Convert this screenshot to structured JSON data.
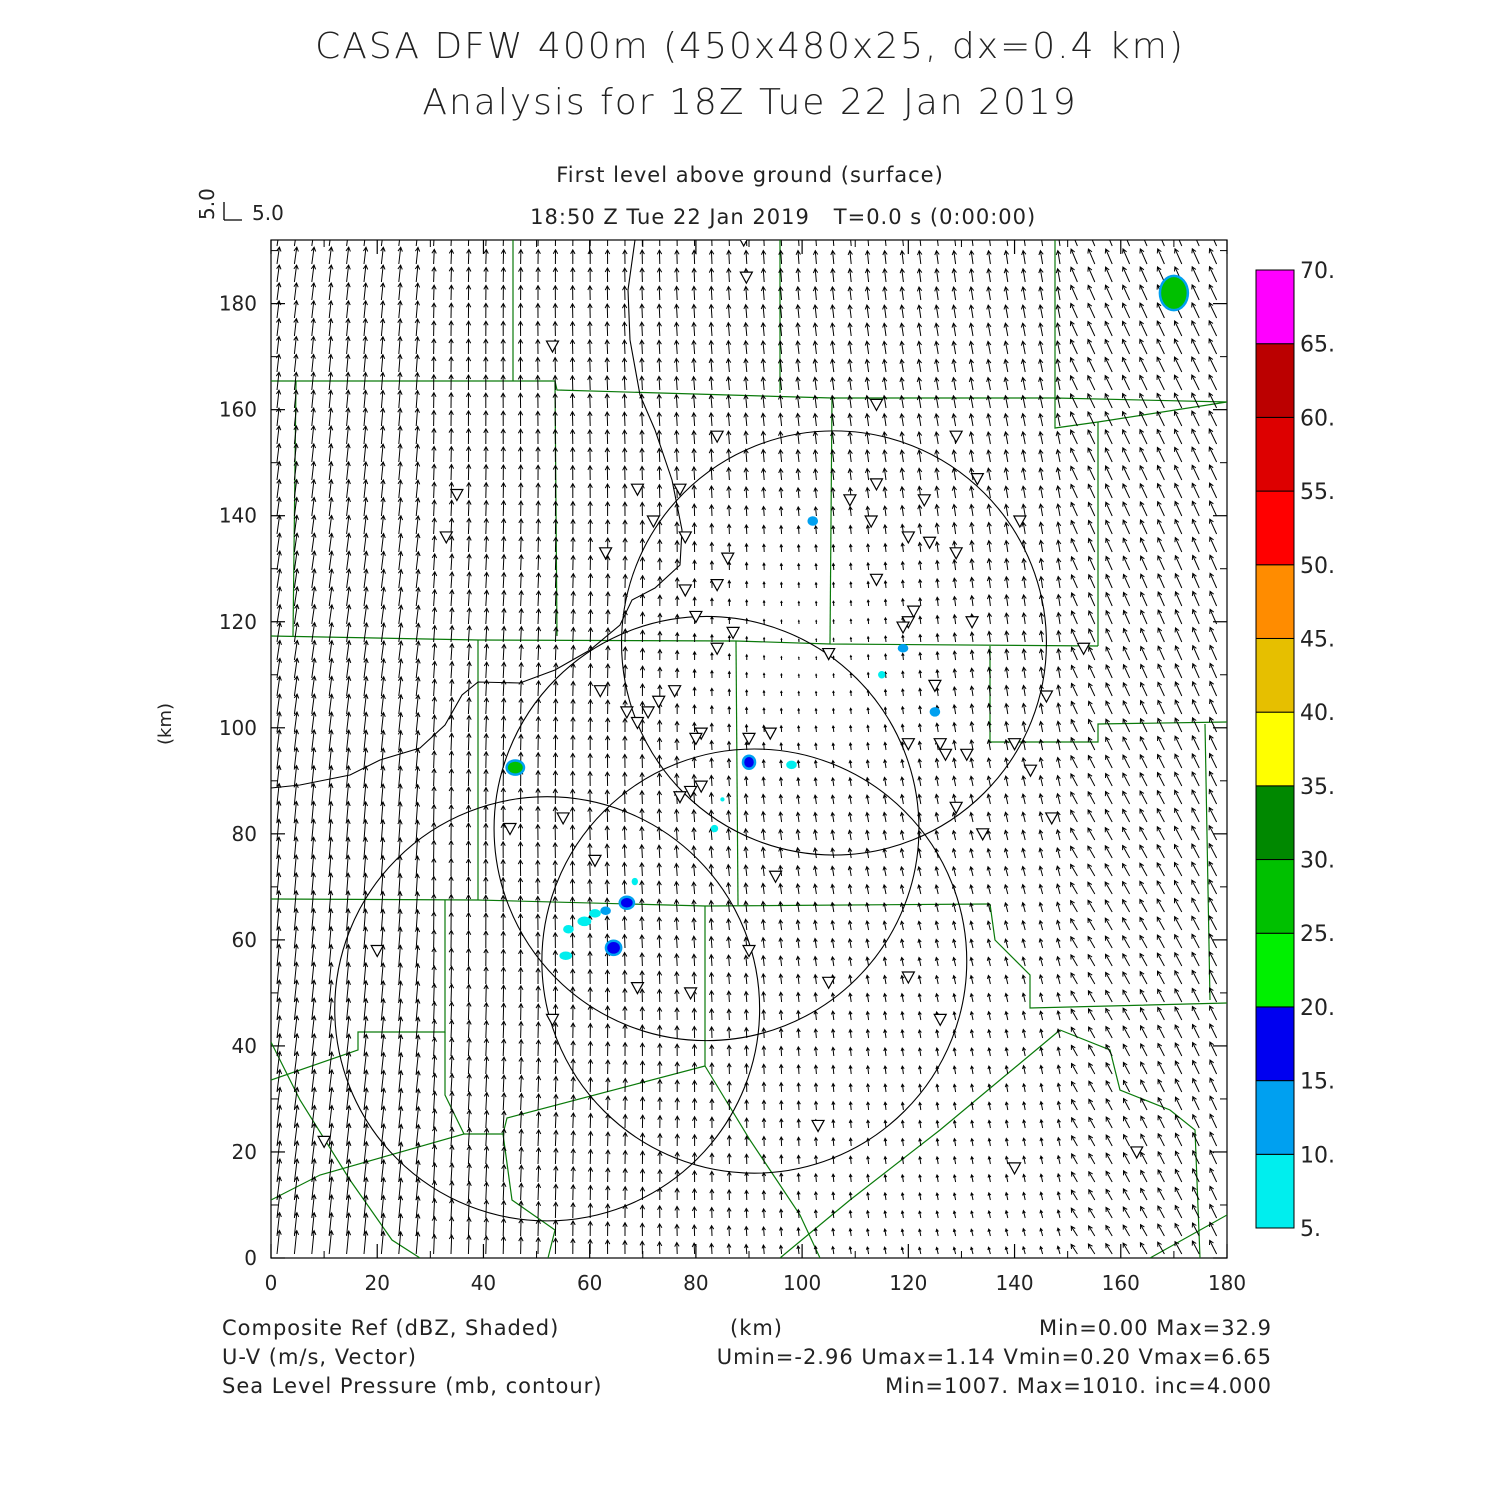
{
  "chart_data": {
    "type": "vector-field",
    "title": "CASA DFW 400m (450x480x25, dx=0.4 km)",
    "subtitle": "Analysis for 18Z Tue 22 Jan 2019",
    "level_label": "First level above ground (surface)",
    "time_label": "18:50 Z Tue 22 Jan 2019",
    "time_offset_label": "T=0.0 s (0:00:00)",
    "ref_vector": {
      "u_label": "5.0",
      "v_label": "5.0"
    },
    "xlabel": "(km)",
    "ylabel": "(km)",
    "xlim": [
      0,
      180
    ],
    "ylim": [
      0,
      192
    ],
    "xticks": [
      0,
      20,
      40,
      60,
      80,
      100,
      120,
      140,
      160,
      180
    ],
    "yticks": [
      0,
      20,
      40,
      60,
      80,
      100,
      120,
      140,
      160,
      180
    ],
    "colorbar": {
      "levels": [
        "5.",
        "10.",
        "15.",
        "20.",
        "25.",
        "30.",
        "35.",
        "40.",
        "45.",
        "50.",
        "55.",
        "60.",
        "65.",
        "70."
      ],
      "colors": [
        "#00eeee",
        "#00a0f0",
        "#0000f0",
        "#00f000",
        "#00c000",
        "#008800",
        "#ffff00",
        "#e6bf00",
        "#ff8c00",
        "#ff0000",
        "#dd0000",
        "#bb0000",
        "#ff00ff"
      ]
    },
    "radar_circles_km": [
      {
        "cx": 52,
        "cy": 47,
        "r": 40
      },
      {
        "cx": 82,
        "cy": 81,
        "r": 40
      },
      {
        "cx": 91,
        "cy": 56,
        "r": 40
      },
      {
        "cx": 106,
        "cy": 116,
        "r": 40
      }
    ],
    "stations_km": [
      [
        89,
        192
      ],
      [
        89.5,
        185
      ],
      [
        53,
        172
      ],
      [
        114,
        161
      ],
      [
        84,
        155
      ],
      [
        129,
        155
      ],
      [
        133,
        147
      ],
      [
        35,
        144
      ],
      [
        69,
        145
      ],
      [
        77,
        145
      ],
      [
        114,
        146
      ],
      [
        109,
        143
      ],
      [
        123,
        143
      ],
      [
        33,
        136
      ],
      [
        72,
        139
      ],
      [
        113,
        139
      ],
      [
        141,
        139
      ],
      [
        78,
        136
      ],
      [
        120,
        136
      ],
      [
        124,
        135
      ],
      [
        63,
        133
      ],
      [
        86,
        132
      ],
      [
        129,
        133
      ],
      [
        114,
        128
      ],
      [
        84,
        127
      ],
      [
        78,
        126
      ],
      [
        121,
        122
      ],
      [
        120,
        120
      ],
      [
        80,
        121
      ],
      [
        132,
        120
      ],
      [
        119,
        119
      ],
      [
        87,
        118
      ],
      [
        84,
        115
      ],
      [
        105,
        114
      ],
      [
        153,
        115
      ],
      [
        62,
        107
      ],
      [
        125,
        108
      ],
      [
        76,
        107
      ],
      [
        73,
        105
      ],
      [
        71,
        103
      ],
      [
        67,
        103
      ],
      [
        69,
        101
      ],
      [
        146,
        106
      ],
      [
        81,
        99
      ],
      [
        90,
        98
      ],
      [
        94,
        99
      ],
      [
        80,
        98
      ],
      [
        120,
        97
      ],
      [
        140,
        97
      ],
      [
        126,
        97
      ],
      [
        127,
        95
      ],
      [
        131,
        95
      ],
      [
        143,
        92
      ],
      [
        81,
        89
      ],
      [
        79,
        88
      ],
      [
        77,
        87
      ],
      [
        129,
        85
      ],
      [
        55,
        83
      ],
      [
        147,
        83
      ],
      [
        45,
        81
      ],
      [
        134,
        80
      ],
      [
        61,
        75
      ],
      [
        95,
        72
      ],
      [
        20,
        58
      ],
      [
        90,
        58
      ],
      [
        105,
        52
      ],
      [
        120,
        53
      ],
      [
        69,
        51
      ],
      [
        79,
        50
      ],
      [
        53,
        45
      ],
      [
        126,
        45
      ],
      [
        103,
        25
      ],
      [
        10,
        22
      ],
      [
        163,
        20
      ],
      [
        140,
        17
      ]
    ],
    "echoes_km": [
      {
        "x": 170,
        "y": 182,
        "rx": 2.4,
        "ry": 3.0,
        "dbz": 25
      },
      {
        "x": 102,
        "y": 139,
        "rx": 1.0,
        "ry": 0.9,
        "dbz": 10
      },
      {
        "x": 119,
        "y": 115,
        "rx": 1.0,
        "ry": 0.8,
        "dbz": 10
      },
      {
        "x": 115,
        "y": 110,
        "rx": 0.7,
        "ry": 0.7,
        "dbz": 5
      },
      {
        "x": 125,
        "y": 103,
        "rx": 1.0,
        "ry": 0.9,
        "dbz": 10
      },
      {
        "x": 46,
        "y": 92.5,
        "rx": 1.4,
        "ry": 1.1,
        "dbz": 25
      },
      {
        "x": 90,
        "y": 93.5,
        "rx": 0.9,
        "ry": 1.0,
        "dbz": 15
      },
      {
        "x": 98,
        "y": 93,
        "rx": 1.0,
        "ry": 0.8,
        "dbz": 5
      },
      {
        "x": 83.5,
        "y": 81,
        "rx": 0.7,
        "ry": 0.7,
        "dbz": 5
      },
      {
        "x": 85,
        "y": 86.5,
        "rx": 0.4,
        "ry": 0.4,
        "dbz": 5
      },
      {
        "x": 67,
        "y": 67,
        "rx": 1.1,
        "ry": 0.9,
        "dbz": 15
      },
      {
        "x": 68.5,
        "y": 71,
        "rx": 0.6,
        "ry": 0.7,
        "dbz": 5
      },
      {
        "x": 61,
        "y": 65,
        "rx": 1.1,
        "ry": 0.8,
        "dbz": 5
      },
      {
        "x": 63,
        "y": 65.5,
        "rx": 1.0,
        "ry": 0.8,
        "dbz": 10
      },
      {
        "x": 59,
        "y": 63.5,
        "rx": 1.3,
        "ry": 0.9,
        "dbz": 5
      },
      {
        "x": 56,
        "y": 62,
        "rx": 1.0,
        "ry": 0.8,
        "dbz": 5
      },
      {
        "x": 64.5,
        "y": 58.5,
        "rx": 1.2,
        "ry": 1.1,
        "dbz": 15
      },
      {
        "x": 55.5,
        "y": 57,
        "rx": 1.2,
        "ry": 0.8,
        "dbz": 5
      }
    ],
    "stats": {
      "ref_label": "Composite Ref (dBZ, Shaded)",
      "ref_range": "Min=0.00 Max=32.9",
      "wind_label": "U-V (m/s, Vector)",
      "wind_range": "Umin=-2.96 Umax=1.14 Vmin=0.20 Vmax=6.65",
      "slp_label": "Sea Level Pressure (mb, contour)",
      "slp_range": "Min=1007. Max=1010. inc=4.000"
    }
  }
}
